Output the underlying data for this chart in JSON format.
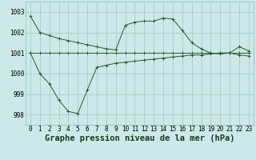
{
  "title": "Graphe pression niveau de la mer (hPa)",
  "background_color": "#cce8e8",
  "grid_color": "#aacccc",
  "line_color": "#2d5a2d",
  "line1": [
    1002.8,
    1002.0,
    1001.85,
    1001.7,
    1001.6,
    1001.5,
    1001.4,
    1001.3,
    1001.2,
    1001.15,
    1002.35,
    1002.5,
    1002.55,
    1002.55,
    1002.7,
    1002.65,
    1002.1,
    1001.5,
    1001.2,
    1001.0,
    1000.95,
    1001.0,
    1001.3,
    1001.1
  ],
  "line2": [
    1001.0,
    1001.0,
    1001.0,
    1001.0,
    1001.0,
    1001.0,
    1001.0,
    1001.0,
    1001.0,
    1001.0,
    1001.0,
    1001.0,
    1001.0,
    1001.0,
    1001.0,
    1001.0,
    1001.0,
    1001.0,
    1001.0,
    1001.0,
    1001.0,
    1001.0,
    1001.0,
    1001.0
  ],
  "line3": [
    1001.0,
    1000.0,
    999.5,
    998.7,
    998.15,
    998.05,
    999.2,
    1000.3,
    1000.4,
    1000.5,
    1000.55,
    1000.6,
    1000.65,
    1000.7,
    1000.75,
    1000.8,
    1000.85,
    1000.9,
    1000.9,
    1000.95,
    1001.0,
    1001.0,
    1000.9,
    1000.85
  ],
  "ylim": [
    997.5,
    1003.5
  ],
  "yticks": [
    998,
    999,
    1000,
    1001,
    1002,
    1003
  ],
  "xticks": [
    0,
    1,
    2,
    3,
    4,
    5,
    6,
    7,
    8,
    9,
    10,
    11,
    12,
    13,
    14,
    15,
    16,
    17,
    18,
    19,
    20,
    21,
    22,
    23
  ],
  "tick_fontsize": 5.5,
  "xlabel_fontsize": 7.5,
  "figwidth": 3.2,
  "figheight": 2.0,
  "dpi": 100
}
